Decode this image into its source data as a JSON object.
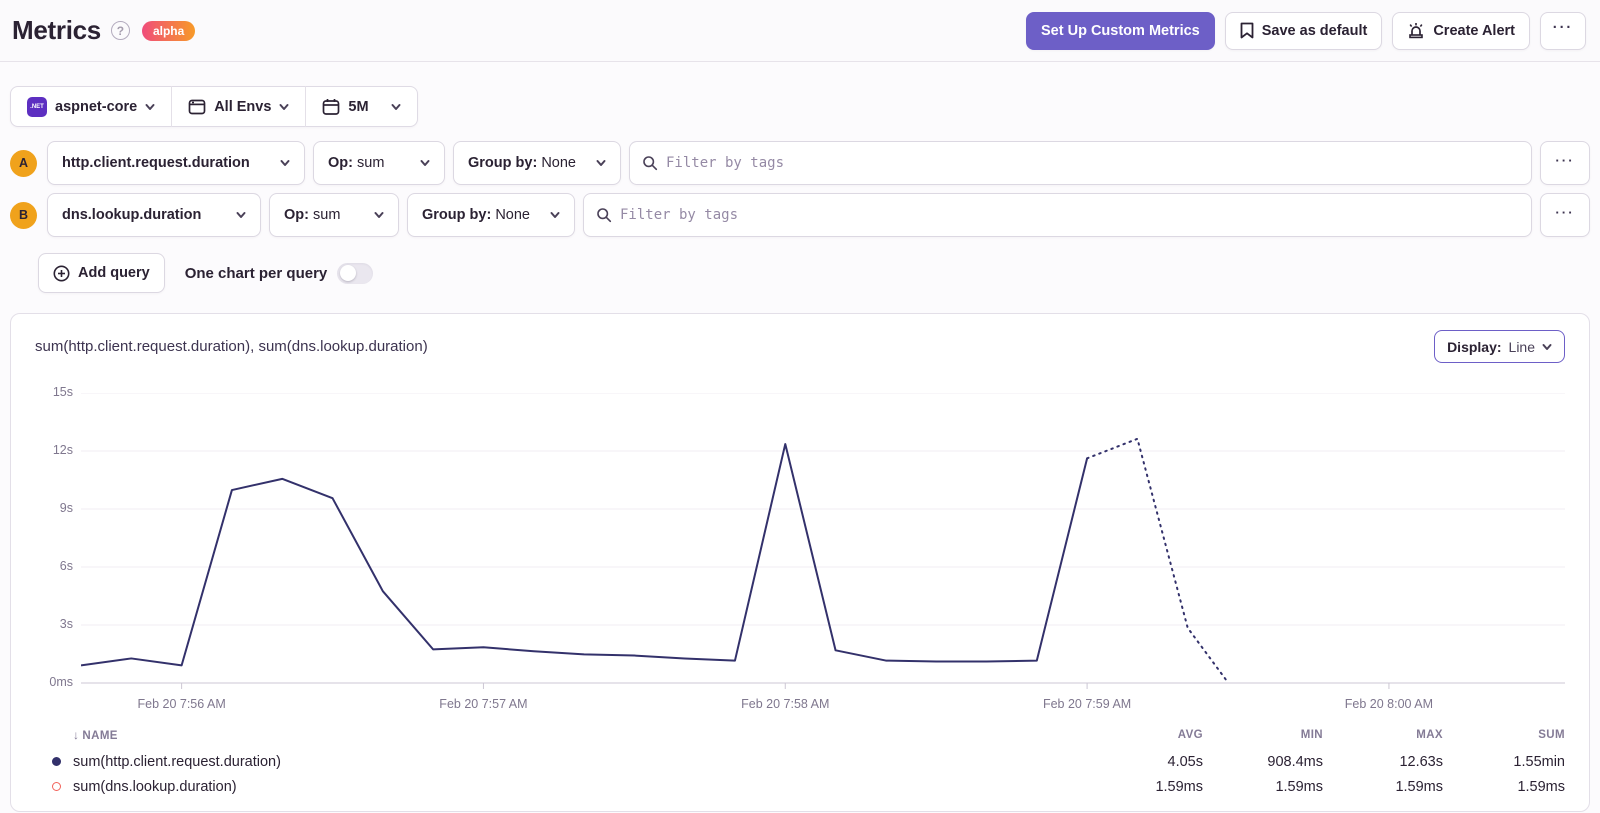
{
  "header": {
    "title": "Metrics",
    "help_icon": "?",
    "alpha_badge": "alpha",
    "setup_button": "Set Up Custom Metrics",
    "save_default_button": "Save as default",
    "create_alert_button": "Create Alert",
    "more_button": "···"
  },
  "filter_bar": {
    "project_icon_label": ".NET",
    "project": "aspnet-core",
    "environment": "All Envs",
    "date_range": "5M"
  },
  "queries": [
    {
      "letter": "A",
      "metric": "http.client.request.duration",
      "op_label": "Op:",
      "op_value": "sum",
      "groupby_label": "Group by:",
      "groupby_value": "None",
      "filter_placeholder": "Filter by tags",
      "more": "···"
    },
    {
      "letter": "B",
      "metric": "dns.lookup.duration",
      "op_label": "Op:",
      "op_value": "sum",
      "groupby_label": "Group by:",
      "groupby_value": "None",
      "filter_placeholder": "Filter by tags",
      "more": "···"
    }
  ],
  "query_actions": {
    "add_query": "Add query",
    "one_chart_label": "One chart per query",
    "one_chart_on": false
  },
  "chart_panel": {
    "title": "sum(http.client.request.duration), sum(dns.lookup.duration)",
    "display_label": "Display:",
    "display_value": "Line"
  },
  "chart_data": {
    "type": "line",
    "title": "sum(http.client.request.duration), sum(dns.lookup.duration)",
    "ylim": [
      0,
      15
    ],
    "x_domain": [
      0,
      295
    ],
    "y_ticks": [
      {
        "v": 15,
        "label": "15s"
      },
      {
        "v": 12,
        "label": "12s"
      },
      {
        "v": 9,
        "label": "9s"
      },
      {
        "v": 6,
        "label": "6s"
      },
      {
        "v": 3,
        "label": "3s"
      },
      {
        "v": 0,
        "label": "0ms"
      }
    ],
    "x_ticks": [
      {
        "t": 20,
        "label": "Feb 20 7:56 AM"
      },
      {
        "t": 80,
        "label": "Feb 20 7:57 AM"
      },
      {
        "t": 140,
        "label": "Feb 20 7:58 AM"
      },
      {
        "t": 200,
        "label": "Feb 20 7:59 AM"
      },
      {
        "t": 260,
        "label": "Feb 20 8:00 AM"
      }
    ],
    "colors": {
      "grid": "#f0eef3",
      "axis": "#ccc7d4"
    },
    "series": [
      {
        "name": "sum(http.client.request.duration)",
        "color": "#33316b",
        "unit": "seconds",
        "solid_points": [
          [
            0,
            0.91
          ],
          [
            10,
            1.27
          ],
          [
            20,
            0.91
          ],
          [
            30,
            9.98
          ],
          [
            40,
            10.56
          ],
          [
            50,
            9.56
          ],
          [
            60,
            4.75
          ],
          [
            70,
            1.74
          ],
          [
            80,
            1.85
          ],
          [
            90,
            1.64
          ],
          [
            100,
            1.48
          ],
          [
            110,
            1.42
          ],
          [
            120,
            1.27
          ],
          [
            130,
            1.16
          ],
          [
            140,
            12.36
          ],
          [
            150,
            1.69
          ],
          [
            160,
            1.16
          ],
          [
            170,
            1.11
          ],
          [
            180,
            1.11
          ],
          [
            190,
            1.16
          ],
          [
            200,
            11.62
          ]
        ],
        "dotted_points": [
          [
            200,
            11.62
          ],
          [
            210,
            12.63
          ],
          [
            220,
            2.85
          ],
          [
            228,
            0.03
          ]
        ]
      },
      {
        "name": "sum(dns.lookup.duration)",
        "color": "#f2635b",
        "unit": "milliseconds",
        "hidden": true,
        "solid_points": [],
        "dotted_points": []
      }
    ]
  },
  "summary_table": {
    "columns": {
      "name": "NAME",
      "avg": "AVG",
      "min": "MIN",
      "max": "MAX",
      "sum": "SUM"
    },
    "sort_arrow": "↓",
    "rows": [
      {
        "swatch": "filled",
        "color": "#33316b",
        "name": "sum(http.client.request.duration)",
        "avg": "4.05s",
        "min": "908.4ms",
        "max": "12.63s",
        "sum": "1.55min"
      },
      {
        "swatch": "hollow",
        "color": "#f2635b",
        "name": "sum(dns.lookup.duration)",
        "avg": "1.59ms",
        "min": "1.59ms",
        "max": "1.59ms",
        "sum": "1.59ms"
      }
    ]
  }
}
